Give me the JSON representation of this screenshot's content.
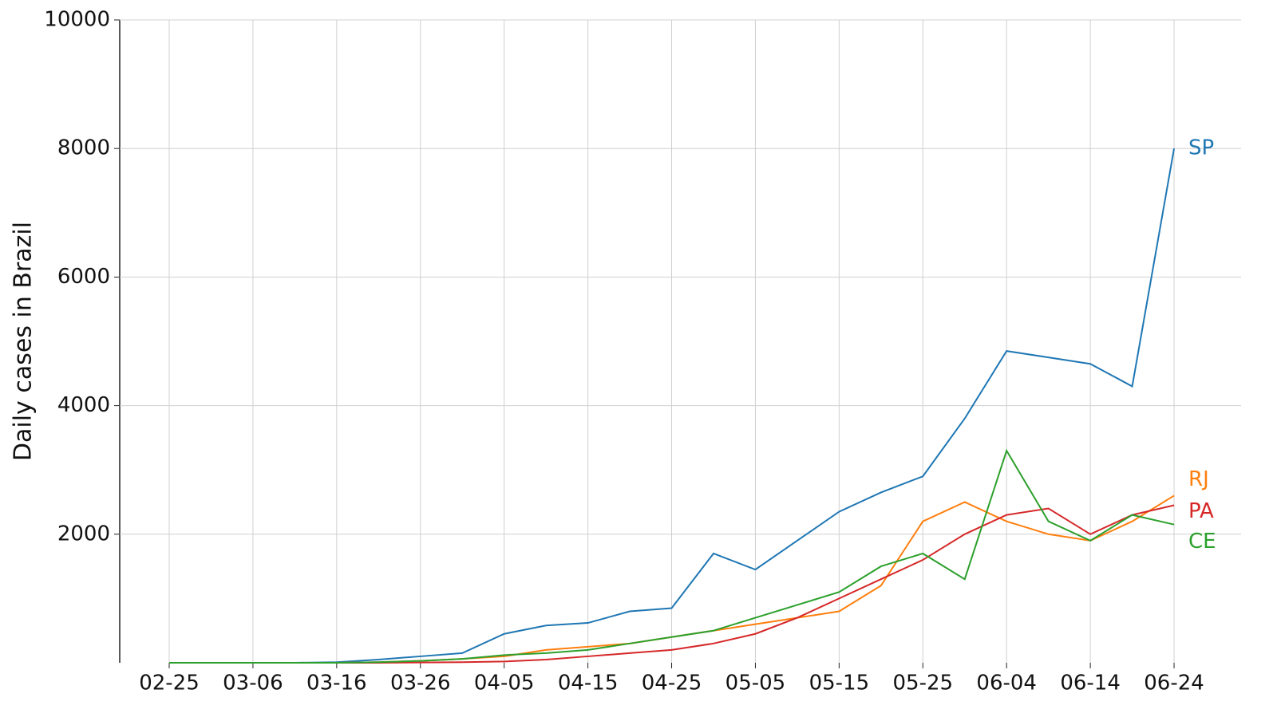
{
  "chart_data": {
    "type": "line",
    "y_label": "Daily cases in Brazil",
    "x": [
      "02-25",
      "03-01",
      "03-06",
      "03-11",
      "03-16",
      "03-21",
      "03-26",
      "03-31",
      "04-05",
      "04-10",
      "04-15",
      "04-20",
      "04-25",
      "04-30",
      "05-05",
      "05-10",
      "05-15",
      "05-20",
      "05-25",
      "05-30",
      "06-04",
      "06-09",
      "06-14",
      "06-19",
      "06-24"
    ],
    "ylim": [
      0,
      10000
    ],
    "yticks": [
      2000,
      4000,
      6000,
      8000,
      10000
    ],
    "grid": true,
    "series": [
      {
        "name": "SP",
        "color": "#1f77b4",
        "values": [
          0,
          0,
          0,
          0,
          10,
          50,
          100,
          150,
          450,
          580,
          620,
          800,
          850,
          1700,
          1450,
          1900,
          2350,
          2650,
          2900,
          3800,
          4850,
          4750,
          4650,
          4300,
          8000
        ]
      },
      {
        "name": "RJ",
        "color": "#ff7f0e",
        "values": [
          0,
          0,
          0,
          0,
          0,
          10,
          30,
          60,
          100,
          200,
          250,
          300,
          400,
          500,
          600,
          700,
          800,
          1200,
          2200,
          2500,
          2200,
          2000,
          1900,
          2200,
          2600
        ]
      },
      {
        "name": "PA",
        "color": "#d62728",
        "values": [
          0,
          0,
          0,
          0,
          0,
          0,
          5,
          10,
          20,
          50,
          100,
          150,
          200,
          300,
          450,
          700,
          1000,
          1300,
          1600,
          2000,
          2300,
          2400,
          2000,
          2300,
          2450
        ]
      },
      {
        "name": "CE",
        "color": "#2ca02c",
        "values": [
          0,
          0,
          0,
          0,
          0,
          10,
          30,
          60,
          120,
          150,
          200,
          300,
          400,
          500,
          700,
          900,
          1100,
          1500,
          1700,
          1300,
          3300,
          2200,
          1900,
          2300,
          2150
        ]
      }
    ]
  }
}
